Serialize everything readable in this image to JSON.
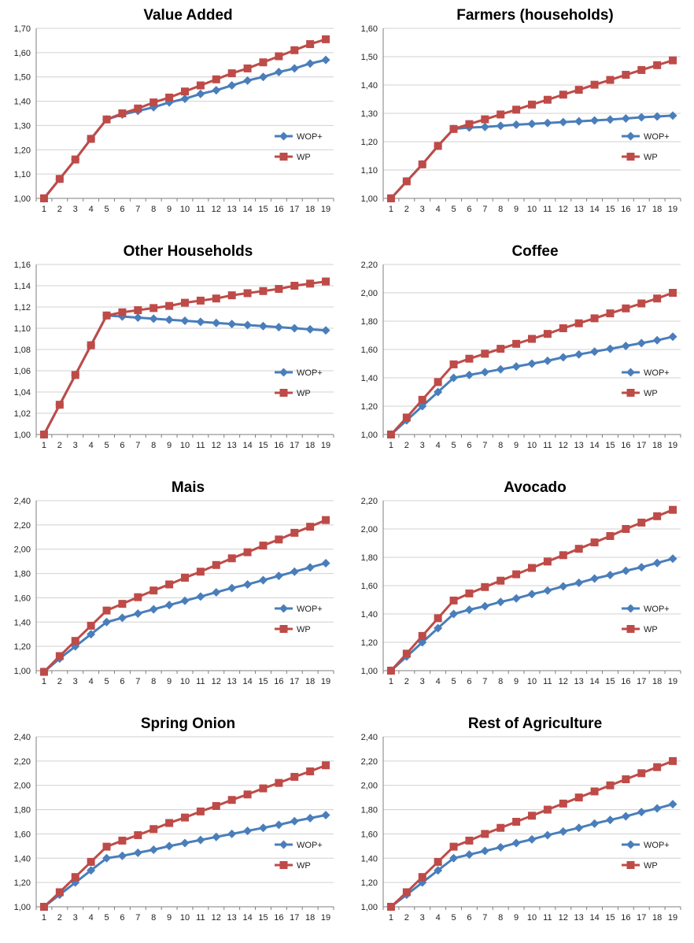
{
  "chart_data": [
    {
      "type": "line",
      "title": "Value Added",
      "x": [
        1,
        2,
        3,
        4,
        5,
        6,
        7,
        8,
        9,
        10,
        11,
        12,
        13,
        14,
        15,
        16,
        17,
        18,
        19
      ],
      "ylim": [
        1.0,
        1.7
      ],
      "ystep": 0.1,
      "ytick_labels": [
        "1,00",
        "1,10",
        "1,20",
        "1,30",
        "1,40",
        "1,50",
        "1,60",
        "1,70"
      ],
      "grid": true,
      "legend": "right",
      "series": [
        {
          "name": "WOP+",
          "color": "#4a7ebb",
          "marker": "diamond",
          "values": [
            1.0,
            1.08,
            1.16,
            1.245,
            1.325,
            1.345,
            1.36,
            1.375,
            1.395,
            1.41,
            1.43,
            1.445,
            1.465,
            1.485,
            1.5,
            1.52,
            1.535,
            1.555,
            1.57
          ]
        },
        {
          "name": "WP",
          "color": "#be4b48",
          "marker": "square",
          "values": [
            1.0,
            1.08,
            1.16,
            1.245,
            1.325,
            1.35,
            1.37,
            1.395,
            1.415,
            1.44,
            1.465,
            1.49,
            1.515,
            1.535,
            1.56,
            1.585,
            1.61,
            1.635,
            1.655
          ]
        }
      ]
    },
    {
      "type": "line",
      "title": "Farmers (households)",
      "x": [
        1,
        2,
        3,
        4,
        5,
        6,
        7,
        8,
        9,
        10,
        11,
        12,
        13,
        14,
        15,
        16,
        17,
        18,
        19
      ],
      "ylim": [
        1.0,
        1.6
      ],
      "ystep": 0.1,
      "ytick_labels": [
        "1,00",
        "1,10",
        "1,20",
        "1,30",
        "1,40",
        "1,50",
        "1,60"
      ],
      "grid": true,
      "legend": "right",
      "series": [
        {
          "name": "WOP+",
          "color": "#4a7ebb",
          "marker": "diamond",
          "values": [
            1.0,
            1.06,
            1.12,
            1.185,
            1.245,
            1.25,
            1.252,
            1.256,
            1.26,
            1.263,
            1.266,
            1.269,
            1.272,
            1.275,
            1.278,
            1.282,
            1.286,
            1.289,
            1.292
          ]
        },
        {
          "name": "WP",
          "color": "#be4b48",
          "marker": "square",
          "values": [
            1.0,
            1.06,
            1.12,
            1.185,
            1.245,
            1.262,
            1.279,
            1.296,
            1.313,
            1.331,
            1.348,
            1.366,
            1.383,
            1.401,
            1.418,
            1.436,
            1.453,
            1.47,
            1.487
          ]
        }
      ]
    },
    {
      "type": "line",
      "title": "Other Households",
      "x": [
        1,
        2,
        3,
        4,
        5,
        6,
        7,
        8,
        9,
        10,
        11,
        12,
        13,
        14,
        15,
        16,
        17,
        18,
        19
      ],
      "ylim": [
        1.0,
        1.16
      ],
      "ystep": 0.02,
      "ytick_labels": [
        "1,00",
        "1,02",
        "1,04",
        "1,06",
        "1,08",
        "1,10",
        "1,12",
        "1,14",
        "1,16"
      ],
      "grid": true,
      "legend": "right",
      "series": [
        {
          "name": "WOP+",
          "color": "#4a7ebb",
          "marker": "diamond",
          "values": [
            1.0,
            1.028,
            1.056,
            1.084,
            1.112,
            1.111,
            1.11,
            1.109,
            1.108,
            1.107,
            1.106,
            1.105,
            1.104,
            1.103,
            1.102,
            1.101,
            1.1,
            1.099,
            1.098
          ]
        },
        {
          "name": "WP",
          "color": "#be4b48",
          "marker": "square",
          "values": [
            1.0,
            1.028,
            1.056,
            1.084,
            1.112,
            1.115,
            1.117,
            1.119,
            1.121,
            1.124,
            1.126,
            1.128,
            1.131,
            1.133,
            1.135,
            1.137,
            1.14,
            1.142,
            1.144
          ]
        }
      ]
    },
    {
      "type": "line",
      "title": "Coffee",
      "x": [
        1,
        2,
        3,
        4,
        5,
        6,
        7,
        8,
        9,
        10,
        11,
        12,
        13,
        14,
        15,
        16,
        17,
        18,
        19
      ],
      "ylim": [
        1.0,
        2.2
      ],
      "ystep": 0.2,
      "ytick_labels": [
        "1,00",
        "1,20",
        "1,40",
        "1,60",
        "1,80",
        "2,00",
        "2,20"
      ],
      "grid": true,
      "legend": "right",
      "series": [
        {
          "name": "WOP+",
          "color": "#4a7ebb",
          "marker": "diamond",
          "values": [
            1.0,
            1.1,
            1.2,
            1.3,
            1.4,
            1.42,
            1.44,
            1.46,
            1.48,
            1.5,
            1.52,
            1.545,
            1.565,
            1.585,
            1.605,
            1.625,
            1.645,
            1.665,
            1.69
          ]
        },
        {
          "name": "WP",
          "color": "#be4b48",
          "marker": "square",
          "values": [
            1.0,
            1.12,
            1.245,
            1.37,
            1.495,
            1.535,
            1.57,
            1.605,
            1.64,
            1.675,
            1.71,
            1.75,
            1.785,
            1.82,
            1.855,
            1.89,
            1.925,
            1.96,
            2.0
          ]
        }
      ]
    },
    {
      "type": "line",
      "title": "Mais",
      "x": [
        1,
        2,
        3,
        4,
        5,
        6,
        7,
        8,
        9,
        10,
        11,
        12,
        13,
        14,
        15,
        16,
        17,
        18,
        19
      ],
      "ylim": [
        1.0,
        2.4
      ],
      "ystep": 0.2,
      "ytick_labels": [
        "1,00",
        "1,20",
        "1,40",
        "1,60",
        "1,80",
        "2,00",
        "2,20",
        "2,40"
      ],
      "grid": true,
      "legend": "right",
      "series": [
        {
          "name": "WOP+",
          "color": "#4a7ebb",
          "marker": "diamond",
          "values": [
            0.99,
            1.1,
            1.2,
            1.3,
            1.4,
            1.435,
            1.47,
            1.505,
            1.54,
            1.575,
            1.61,
            1.645,
            1.68,
            1.71,
            1.745,
            1.78,
            1.815,
            1.85,
            1.885
          ]
        },
        {
          "name": "WP",
          "color": "#be4b48",
          "marker": "square",
          "values": [
            0.99,
            1.12,
            1.245,
            1.37,
            1.495,
            1.55,
            1.605,
            1.66,
            1.71,
            1.765,
            1.815,
            1.87,
            1.925,
            1.975,
            2.03,
            2.08,
            2.135,
            2.185,
            2.24
          ]
        }
      ]
    },
    {
      "type": "line",
      "title": "Avocado",
      "x": [
        1,
        2,
        3,
        4,
        5,
        6,
        7,
        8,
        9,
        10,
        11,
        12,
        13,
        14,
        15,
        16,
        17,
        18,
        19
      ],
      "ylim": [
        1.0,
        2.2
      ],
      "ystep": 0.2,
      "ytick_labels": [
        "1,00",
        "1,20",
        "1,40",
        "1,60",
        "1,80",
        "2,00",
        "2,20"
      ],
      "grid": true,
      "legend": "right",
      "series": [
        {
          "name": "WOP+",
          "color": "#4a7ebb",
          "marker": "diamond",
          "values": [
            1.0,
            1.1,
            1.2,
            1.3,
            1.4,
            1.43,
            1.455,
            1.485,
            1.51,
            1.54,
            1.565,
            1.595,
            1.62,
            1.65,
            1.675,
            1.705,
            1.73,
            1.76,
            1.79
          ]
        },
        {
          "name": "WP",
          "color": "#be4b48",
          "marker": "square",
          "values": [
            1.0,
            1.12,
            1.245,
            1.37,
            1.495,
            1.545,
            1.59,
            1.635,
            1.68,
            1.725,
            1.77,
            1.815,
            1.86,
            1.905,
            1.95,
            2.0,
            2.045,
            2.09,
            2.135
          ]
        }
      ]
    },
    {
      "type": "line",
      "title": "Spring Onion",
      "x": [
        1,
        2,
        3,
        4,
        5,
        6,
        7,
        8,
        9,
        10,
        11,
        12,
        13,
        14,
        15,
        16,
        17,
        18,
        19
      ],
      "ylim": [
        1.0,
        2.4
      ],
      "ystep": 0.2,
      "ytick_labels": [
        "1,00",
        "1,20",
        "1,40",
        "1,60",
        "1,80",
        "2,00",
        "2,20",
        "2,40"
      ],
      "grid": true,
      "legend": "right",
      "series": [
        {
          "name": "WOP+",
          "color": "#4a7ebb",
          "marker": "diamond",
          "values": [
            1.0,
            1.1,
            1.2,
            1.3,
            1.4,
            1.42,
            1.445,
            1.47,
            1.5,
            1.525,
            1.55,
            1.575,
            1.6,
            1.625,
            1.65,
            1.675,
            1.705,
            1.73,
            1.755
          ]
        },
        {
          "name": "WP",
          "color": "#be4b48",
          "marker": "square",
          "values": [
            1.0,
            1.12,
            1.245,
            1.37,
            1.495,
            1.545,
            1.59,
            1.64,
            1.69,
            1.735,
            1.785,
            1.83,
            1.88,
            1.925,
            1.975,
            2.02,
            2.07,
            2.115,
            2.165
          ]
        }
      ]
    },
    {
      "type": "line",
      "title": "Rest of Agriculture",
      "x": [
        1,
        2,
        3,
        4,
        5,
        6,
        7,
        8,
        9,
        10,
        11,
        12,
        13,
        14,
        15,
        16,
        17,
        18,
        19
      ],
      "ylim": [
        1.0,
        2.4
      ],
      "ystep": 0.2,
      "ytick_labels": [
        "1,00",
        "1,20",
        "1,40",
        "1,60",
        "1,80",
        "2,00",
        "2,20",
        "2,40"
      ],
      "grid": true,
      "legend": "right",
      "series": [
        {
          "name": "WOP+",
          "color": "#4a7ebb",
          "marker": "diamond",
          "values": [
            1.0,
            1.1,
            1.2,
            1.3,
            1.4,
            1.43,
            1.46,
            1.49,
            1.525,
            1.555,
            1.59,
            1.62,
            1.65,
            1.685,
            1.715,
            1.745,
            1.78,
            1.81,
            1.845
          ]
        },
        {
          "name": "WP",
          "color": "#be4b48",
          "marker": "square",
          "values": [
            1.0,
            1.12,
            1.245,
            1.37,
            1.495,
            1.545,
            1.6,
            1.65,
            1.7,
            1.75,
            1.8,
            1.85,
            1.9,
            1.95,
            2.0,
            2.05,
            2.1,
            2.15,
            2.2
          ]
        }
      ]
    }
  ]
}
